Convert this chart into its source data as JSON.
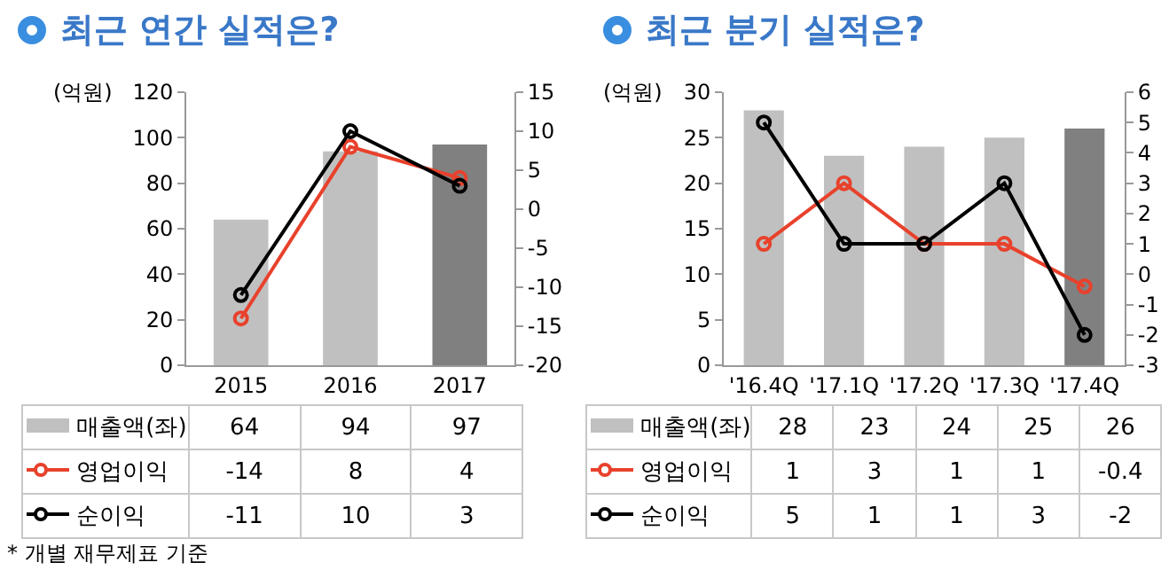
{
  "chart_data": [
    {
      "type": "bar",
      "title": "최근 연간 실적은?",
      "ylabel": "(억원)",
      "categories": [
        "2015",
        "2016",
        "2017"
      ],
      "series": [
        {
          "name": "매출액(좌)",
          "colors": [
            "#c0c0c0",
            "#c0c0c0",
            "#808080"
          ],
          "values": [
            64,
            94,
            97
          ]
        },
        {
          "name": "영업이익",
          "type": "line",
          "axis": "y2",
          "color": "#e8412c",
          "values": [
            -14,
            8,
            4
          ]
        },
        {
          "name": "순이익",
          "type": "line",
          "axis": "y2",
          "color": "#000000",
          "values": [
            -11,
            10,
            3
          ]
        }
      ],
      "ylim": [
        0,
        120
      ],
      "yticks": [
        0,
        20,
        40,
        60,
        80,
        100,
        120
      ],
      "y2lim": [
        -20,
        15
      ],
      "y2ticks": [
        -20,
        -15,
        -10,
        -5,
        0,
        5,
        10,
        15
      ],
      "grid": false,
      "legend": "bottom",
      "marker": "circle",
      "line_style": "solid",
      "data_labels": true,
      "annotations": [
        "* 개별 재무제표 기준"
      ]
    },
    {
      "type": "bar",
      "title": "최근 분기 실적은?",
      "ylabel": "(억원)",
      "categories": [
        "'16.4Q",
        "'17.1Q",
        "'17.2Q",
        "'17.3Q",
        "'17.4Q"
      ],
      "series": [
        {
          "name": "매출액(좌)",
          "colors": [
            "#c0c0c0",
            "#c0c0c0",
            "#c0c0c0",
            "#c0c0c0",
            "#808080"
          ],
          "values": [
            28,
            23,
            24,
            25,
            26
          ]
        },
        {
          "name": "영업이익",
          "type": "line",
          "axis": "y2",
          "color": "#e8412c",
          "values": [
            1,
            3,
            1,
            1,
            -0.4
          ]
        },
        {
          "name": "순이익",
          "type": "line",
          "axis": "y2",
          "color": "#000000",
          "values": [
            5,
            1,
            1,
            3,
            -2
          ]
        }
      ],
      "ylim": [
        0,
        30
      ],
      "yticks": [
        0,
        5,
        10,
        15,
        20,
        25,
        30
      ],
      "y2lim": [
        -3,
        6
      ],
      "y2ticks": [
        -3,
        -2,
        -1,
        0,
        1,
        2,
        3,
        4,
        5,
        6
      ],
      "grid": false,
      "legend": "bottom",
      "marker": "circle",
      "line_style": "solid",
      "data_labels": true
    }
  ]
}
